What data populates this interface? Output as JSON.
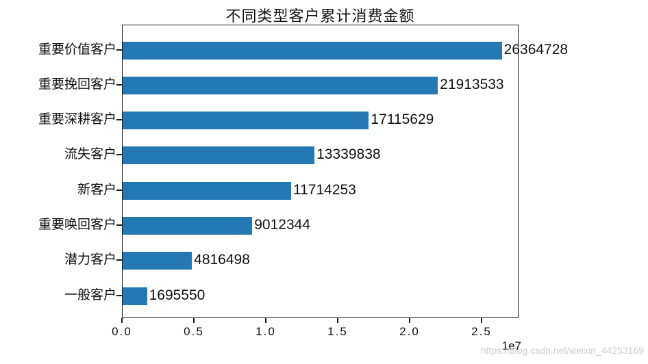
{
  "title": "不同类型客户累计消费金额",
  "watermark": "https://blog.csdn.net/weixin_44253169",
  "chart_data": {
    "type": "bar",
    "orientation": "horizontal",
    "title": "不同类型客户累计消费金额",
    "categories": [
      "重要价值客户",
      "重要挽回客户",
      "重要深耕客户",
      "流失客户",
      "新客户",
      "重要唤回客户",
      "潜力客户",
      "一般客户"
    ],
    "values": [
      26364728,
      21913533,
      17115629,
      13339838,
      11714253,
      9012344,
      4816498,
      1695550
    ],
    "value_labels": [
      "26364728",
      "21913533",
      "17115629",
      "13339838",
      "11714253",
      "9012344",
      "4816498",
      "1695550"
    ],
    "xlabel": "",
    "ylabel": "",
    "xlim": [
      0,
      27570000
    ],
    "x_ticks": [
      0.0,
      0.5,
      1.0,
      1.5,
      2.0,
      2.5
    ],
    "x_tick_labels": [
      "0.0",
      "0.5",
      "1.0",
      "1.5",
      "2.0",
      "2.5"
    ],
    "x_offset_label": "1e7",
    "grid": false,
    "legend": "none",
    "bar_color": "#2478b4",
    "axis_color": "#1a1a1a",
    "text_color": "#111111",
    "watermark_color": "#cccccc"
  }
}
